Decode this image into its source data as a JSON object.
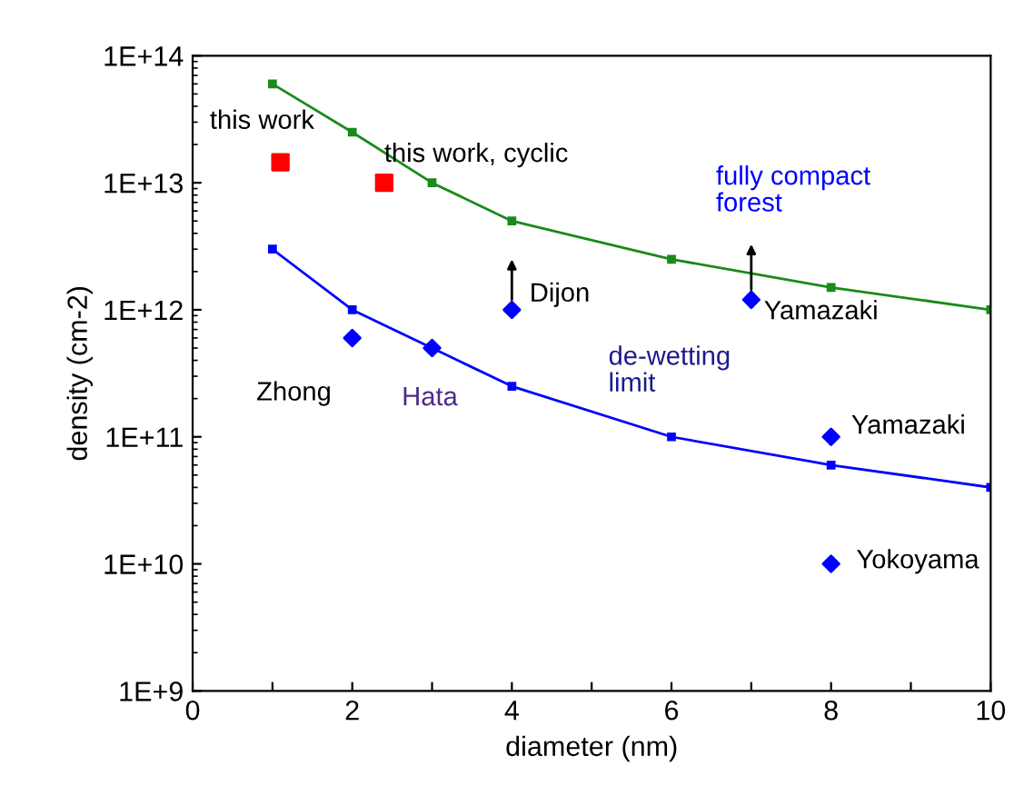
{
  "chart_data": {
    "type": "line",
    "xlabel": "diameter (nm)",
    "ylabel": "density (cm-2)",
    "log": "y",
    "grid": false,
    "legend": false,
    "xlim": [
      0,
      10
    ],
    "xticks": [
      0,
      {
        "value": 1,
        "label": null
      },
      2,
      {
        "value": 3,
        "label": null
      },
      4,
      {
        "value": 5,
        "label": null
      },
      6,
      {
        "value": 7,
        "label": null
      },
      8,
      {
        "value": 9,
        "label": null
      },
      10
    ],
    "ylim": [
      1000000000.0,
      100000000000000.0
    ],
    "yticks": [
      {
        "value": 1000000000.0,
        "label": "1E+9"
      },
      {
        "value": 10000000000.0,
        "label": "1E+10"
      },
      {
        "value": 100000000000.0,
        "label": "1E+11"
      },
      {
        "value": 1000000000000.0,
        "label": "1E+12"
      },
      {
        "value": 10000000000000.0,
        "label": "1E+13"
      },
      {
        "value": 100000000000000.0,
        "label": "1E+14"
      }
    ],
    "series": [
      {
        "color": "#1a8a1a",
        "marker": "square",
        "x": [
          1,
          2,
          3,
          4,
          6,
          8,
          10
        ],
        "values": [
          60000000000000.0,
          25000000000000.0,
          10000000000000.0,
          5000000000000.0,
          2500000000000.0,
          1500000000000.0,
          1000000000000.0
        ]
      },
      {
        "color": "#0000ff",
        "marker": "square",
        "x": [
          1,
          2,
          3,
          4,
          6,
          8,
          10
        ],
        "values": [
          3000000000000.0,
          1000000000000.0,
          500000000000.0,
          250000000000.0,
          100000000000.0,
          60000000000.0,
          40000000000.0
        ]
      },
      {
        "type": "scatter",
        "color": "#ff0000",
        "marker": "square",
        "x": [
          1.1,
          2.4
        ],
        "values": [
          14500000000000.0,
          10000000000000.0
        ]
      },
      {
        "type": "scatter",
        "color": "#0000ff",
        "marker": "diamond",
        "x": [
          2,
          3,
          4,
          7,
          8,
          8
        ],
        "values": [
          600000000000.0,
          500000000000.0,
          1000000000000.0,
          1200000000000.0,
          100000000000.0,
          10000000000.0
        ]
      }
    ],
    "annotations": [
      {
        "text": "this work",
        "x": 1.1,
        "y": 14500000000000.0
      },
      {
        "text": "this work, cyclic",
        "x": 2.4,
        "y": 10000000000000.0
      },
      {
        "text": "fully compact\nforest",
        "x": 7,
        "y": 1900000000000.0
      },
      {
        "text": "Dijon",
        "x": 4,
        "y": 1000000000000.0
      },
      {
        "text": "Yamazaki",
        "x": 7,
        "y": 1200000000000.0
      },
      {
        "text": "Zhong",
        "x": 2,
        "y": 600000000000.0
      },
      {
        "text": "Hata",
        "x": 3,
        "y": 500000000000.0
      },
      {
        "text": "de-wetting\nlimit",
        "x": 6,
        "y": 100000000000.0
      },
      {
        "text": "Yamazaki",
        "x": 8,
        "y": 100000000000.0
      },
      {
        "text": "Yokoyama",
        "x": 8,
        "y": 10000000000.0
      }
    ]
  }
}
